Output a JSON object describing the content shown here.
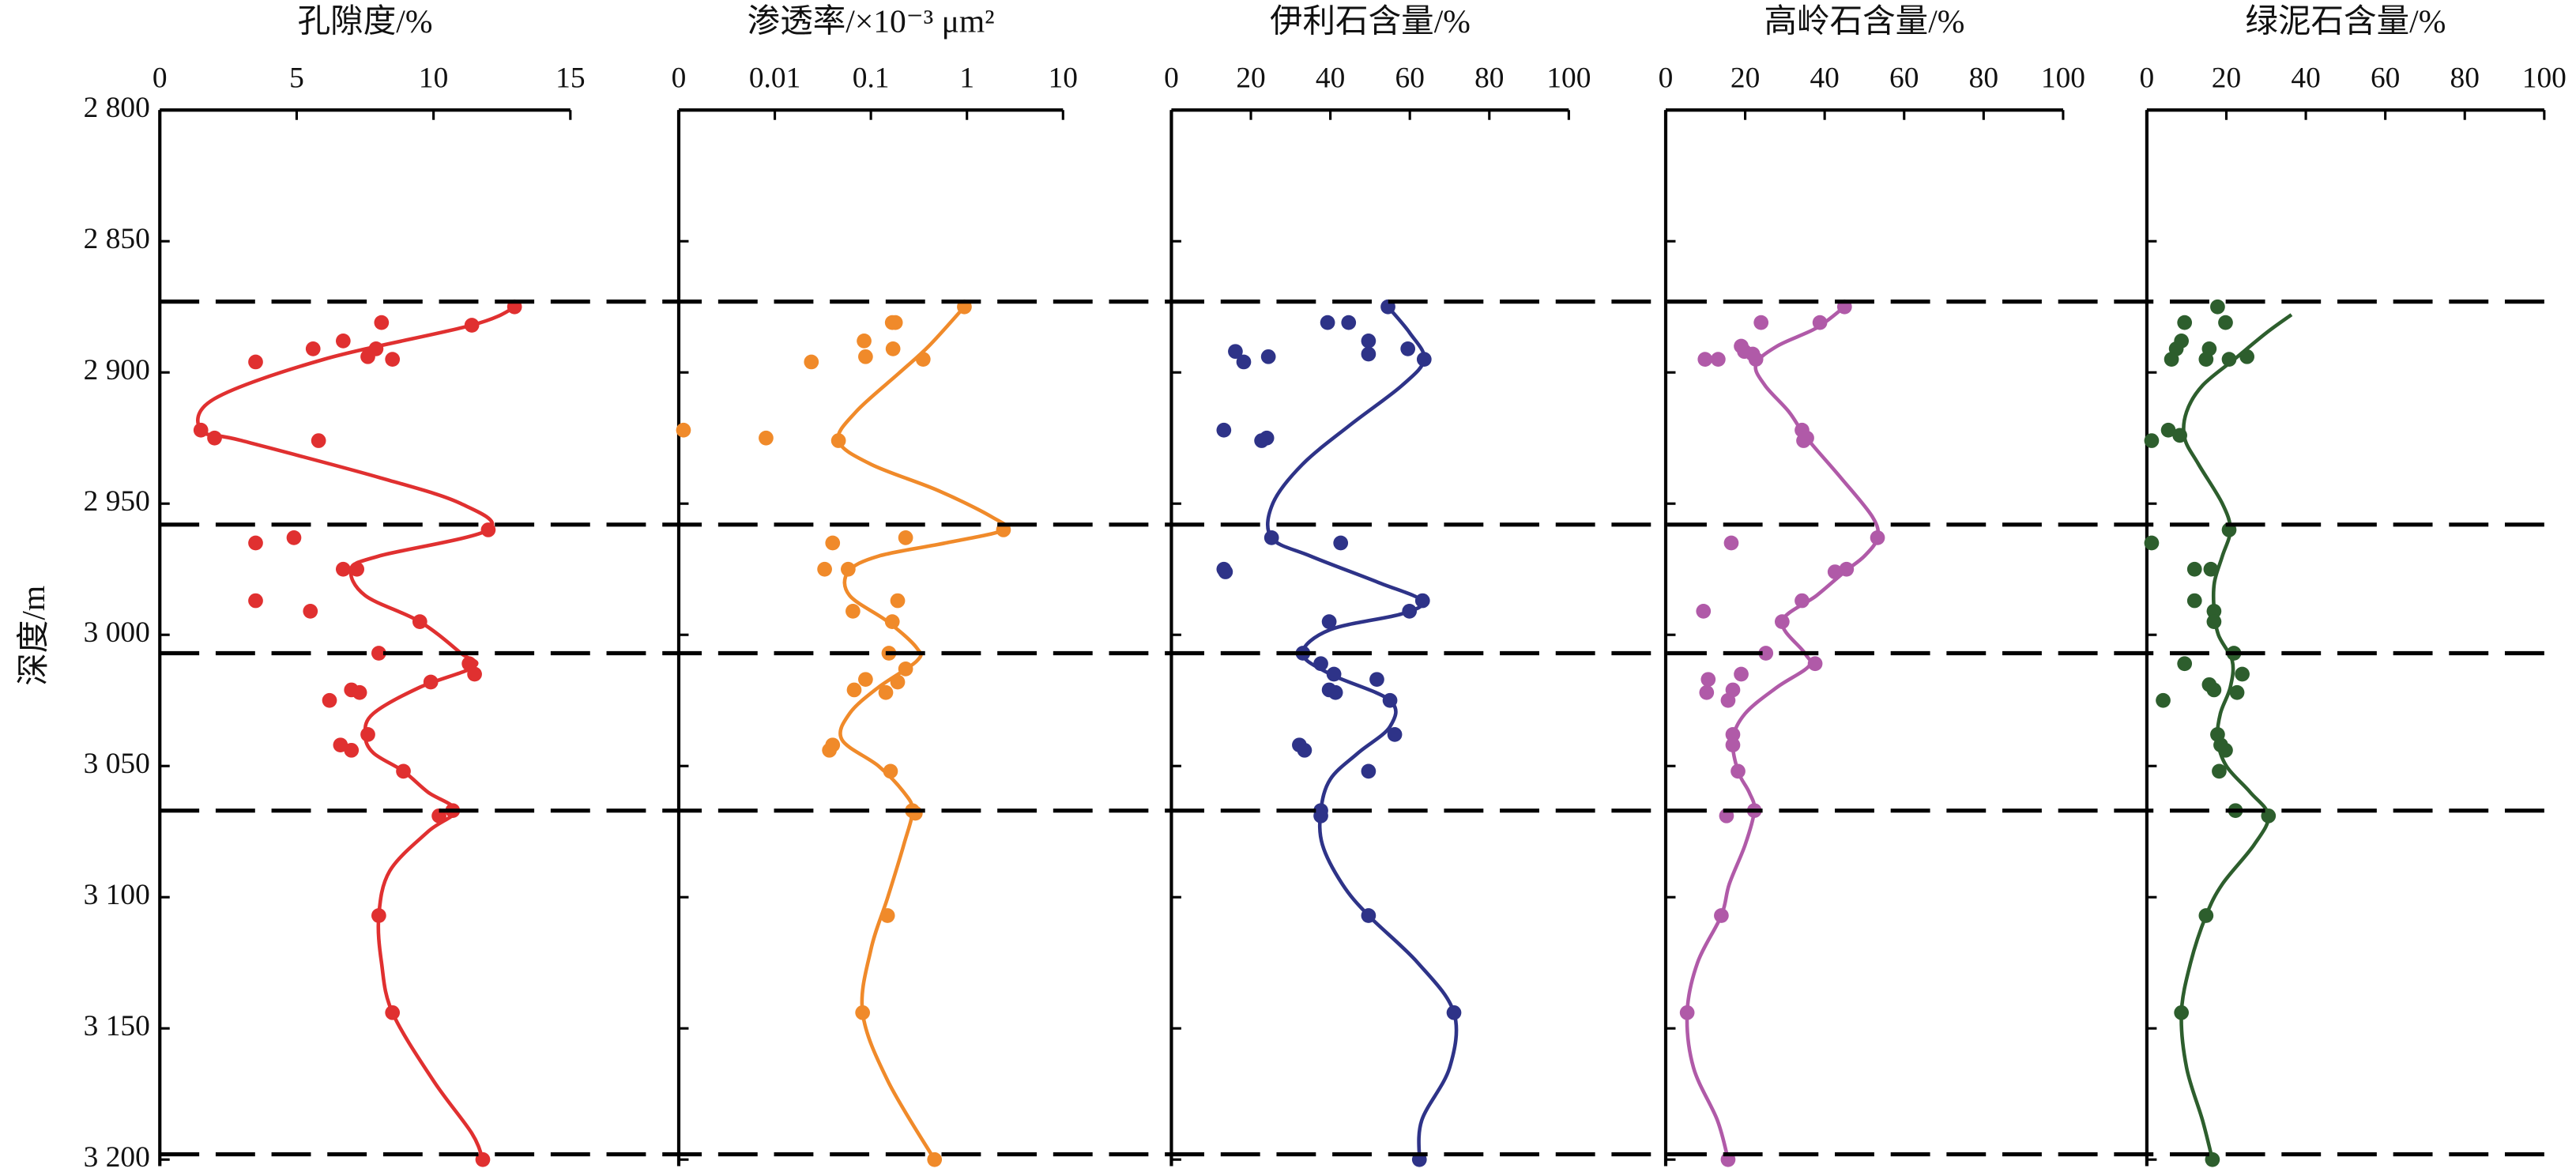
{
  "boundaries": [
    2873,
    2958,
    3007,
    3067,
    3198
  ],
  "chart_data": [
    {
      "type": "scatter",
      "title": "孔隙度/%",
      "ylabel": "深度/m",
      "color": "#e03030",
      "xlim": [
        0,
        15
      ],
      "xticks": [
        0,
        5,
        10,
        15
      ],
      "ylim": [
        2800,
        3200
      ],
      "yticks": [
        {
          "value": 2800,
          "label": "2 800"
        },
        {
          "value": 2850,
          "label": "2 850"
        },
        {
          "value": 2900,
          "label": "2 900"
        },
        {
          "value": 2950,
          "label": "2 950"
        },
        {
          "value": 3000,
          "label": "3 000"
        },
        {
          "value": 3050,
          "label": "3 050"
        },
        {
          "value": 3100,
          "label": "3 100"
        },
        {
          "value": 3150,
          "label": "3 150"
        },
        {
          "value": 3200,
          "label": "3 200"
        }
      ],
      "points": {
        "depth": [
          2875,
          2882,
          2881,
          2891,
          2888,
          2891,
          2894,
          2895,
          2896,
          2922,
          2925,
          2926,
          2960,
          2965,
          2963,
          2975,
          2975,
          2987,
          2991,
          2995,
          3007,
          3011,
          3015,
          3018,
          3021,
          3022,
          3025,
          3038,
          3042,
          3044,
          3052,
          3067,
          3069,
          3107,
          3144,
          3200
        ],
        "values": [
          12.96,
          11.4,
          8.1,
          5.6,
          6.7,
          7.9,
          7.6,
          8.5,
          3.5,
          1.5,
          2.0,
          5.8,
          12.0,
          3.5,
          4.9,
          6.7,
          7.2,
          3.5,
          5.5,
          9.5,
          8.0,
          11.3,
          11.5,
          9.9,
          7.0,
          7.3,
          6.2,
          7.6,
          6.6,
          7.0,
          8.9,
          10.7,
          10.2,
          8.0,
          8.5,
          11.8
        ]
      },
      "curve": {
        "depth": [
          2875,
          2882,
          2895,
          2910,
          2922,
          2926,
          2940,
          2950,
          2960,
          2970,
          2975,
          2985,
          2995,
          3007,
          3012,
          3020,
          3030,
          3038,
          3045,
          3052,
          3060,
          3067,
          3075,
          3090,
          3107,
          3125,
          3144,
          3170,
          3190,
          3200
        ],
        "values": [
          13,
          11.4,
          6,
          2,
          1.5,
          3,
          8,
          11,
          12,
          8,
          7,
          7.5,
          9.5,
          11,
          11.5,
          9.5,
          7.8,
          7.5,
          7.8,
          8.9,
          9.8,
          10.8,
          9.8,
          8.4,
          8,
          8.1,
          8.5,
          10,
          11.4,
          11.8
        ]
      }
    },
    {
      "type": "scatter",
      "title": "渗透率/×10⁻³ μm²",
      "color": "#f08a2a",
      "x_scale": "log",
      "xlim": [
        0.001,
        10
      ],
      "xticks": [
        {
          "value": 0.001,
          "label": "0"
        },
        0.01,
        0.1,
        1,
        10
      ],
      "ylim": [
        2800,
        3200
      ],
      "yticks": [
        2800,
        2850,
        2900,
        2950,
        3000,
        3050,
        3100,
        3150,
        3200
      ],
      "points": {
        "depth": [
          2875,
          2881,
          2881,
          2888,
          2891,
          2894,
          2896,
          2895,
          2922,
          2925,
          2926,
          2960,
          2963,
          2965,
          2975,
          2975,
          2987,
          2991,
          2995,
          3007,
          3013,
          3018,
          3017,
          3021,
          3022,
          3042,
          3044,
          3052,
          3067,
          3068,
          3107,
          3144,
          3200
        ],
        "values": [
          0.94,
          0.167,
          0.18,
          0.085,
          0.17,
          0.088,
          0.024,
          0.35,
          0.00112,
          0.0081,
          0.046,
          2.4,
          0.23,
          0.04,
          0.058,
          0.033,
          0.19,
          0.065,
          0.167,
          0.154,
          0.23,
          0.19,
          0.088,
          0.067,
          0.143,
          0.04,
          0.037,
          0.16,
          0.27,
          0.29,
          0.149,
          0.082,
          0.46
        ]
      },
      "curve": {
        "depth": [
          2875,
          2890,
          2900,
          2915,
          2926,
          2935,
          2945,
          2955,
          2960,
          2965,
          2970,
          2976,
          2985,
          2995,
          3005,
          3010,
          3020,
          3030,
          3040,
          3050,
          3060,
          3067,
          3080,
          3100,
          3120,
          3144,
          3170,
          3200
        ],
        "values": [
          0.94,
          0.4,
          0.2,
          0.07,
          0.046,
          0.1,
          0.5,
          1.8,
          2.4,
          0.6,
          0.12,
          0.058,
          0.06,
          0.15,
          0.3,
          0.3,
          0.12,
          0.06,
          0.05,
          0.12,
          0.22,
          0.27,
          0.22,
          0.15,
          0.1,
          0.082,
          0.15,
          0.46
        ]
      }
    },
    {
      "type": "scatter",
      "title": "伊利石含量/%",
      "color": "#2e3388",
      "xlim": [
        0,
        100
      ],
      "xticks": [
        0,
        20,
        40,
        60,
        80,
        100
      ],
      "ylim": [
        2800,
        3200
      ],
      "yticks": [
        2800,
        2850,
        2900,
        2950,
        3000,
        3050,
        3100,
        3150,
        3200
      ],
      "points": {
        "depth": [
          2875,
          2881,
          2881,
          2888,
          2893,
          2891,
          2895,
          2892,
          2896,
          2894,
          2922,
          2925,
          2926,
          2963,
          2965,
          2975,
          2976,
          2987,
          2991,
          2995,
          3007,
          3011,
          3015,
          3017,
          3021,
          3022,
          3025,
          3038,
          3042,
          3044,
          3052,
          3067,
          3069,
          3107,
          3144,
          3200
        ],
        "values": [
          54.5,
          44.6,
          39.3,
          49.6,
          49.6,
          59.5,
          63.6,
          16.1,
          18.2,
          24.4,
          13.2,
          24.0,
          22.7,
          25.2,
          42.6,
          13.2,
          13.6,
          63.2,
          59.9,
          39.7,
          33.1,
          37.6,
          40.9,
          51.7,
          39.7,
          41.3,
          55,
          56.2,
          32.2,
          33.5,
          49.6,
          37.6,
          37.6,
          49.6,
          71.1,
          62.4
        ]
      },
      "curve": {
        "depth": [
          2875,
          2885,
          2895,
          2905,
          2920,
          2935,
          2950,
          2963,
          2970,
          2980,
          2987,
          2992,
          2998,
          3007,
          3015,
          3025,
          3035,
          3045,
          3055,
          3067,
          3080,
          3095,
          3107,
          3125,
          3144,
          3165,
          3185,
          3200
        ],
        "values": [
          54.5,
          60,
          63.6,
          58,
          45,
          33,
          25.5,
          25.2,
          35,
          52,
          63,
          58,
          40,
          33,
          40,
          55,
          55,
          47,
          40,
          37.6,
          38,
          43,
          49.6,
          62,
          71.1,
          70,
          63,
          62.4
        ]
      }
    },
    {
      "type": "scatter",
      "title": "高岭石含量/%",
      "color": "#b05aa8",
      "xlim": [
        0,
        100
      ],
      "xticks": [
        0,
        20,
        40,
        60,
        80,
        100
      ],
      "ylim": [
        2800,
        3200
      ],
      "yticks": [
        2800,
        2850,
        2900,
        2950,
        3000,
        3050,
        3100,
        3150,
        3200
      ],
      "points": {
        "depth": [
          2875,
          2881,
          2881,
          2890,
          2893,
          2892,
          2895,
          2895,
          2895,
          2922,
          2925,
          2926,
          2963,
          2965,
          2975,
          2976,
          2987,
          2991,
          2995,
          3007,
          3011,
          3015,
          3017,
          3021,
          3022,
          3025,
          3038,
          3042,
          3052,
          3067,
          3069,
          3107,
          3144,
          3200
        ],
        "values": [
          45.0,
          38.8,
          24.0,
          19.0,
          21.9,
          19.8,
          9.9,
          13.2,
          22.7,
          34.3,
          35.5,
          34.7,
          53.3,
          16.5,
          45.5,
          42.6,
          34.3,
          9.5,
          29.3,
          25.2,
          37.6,
          19.0,
          10.7,
          16.9,
          10.3,
          15.7,
          16.9,
          16.9,
          18.2,
          22.3,
          15.3,
          14.0,
          5.4,
          15.7
        ]
      },
      "curve": {
        "depth": [
          2875,
          2883,
          2890,
          2897,
          2905,
          2915,
          2925,
          2940,
          2955,
          2963,
          2970,
          2976,
          2985,
          2995,
          3007,
          3012,
          3020,
          3030,
          3040,
          3052,
          3060,
          3067,
          3080,
          3095,
          3107,
          3125,
          3144,
          3165,
          3185,
          3200
        ],
        "values": [
          45,
          38,
          28,
          22.7,
          25,
          31,
          35.5,
          44,
          52,
          53.3,
          50,
          45,
          38,
          29.3,
          35,
          36,
          28,
          20,
          16.9,
          18.2,
          21,
          22.3,
          20,
          16,
          14,
          8,
          5.4,
          7,
          13,
          15.7
        ]
      }
    },
    {
      "type": "scatter",
      "title": "绿泥石含量/%",
      "color": "#2d5e2d",
      "xlim": [
        0,
        100
      ],
      "xticks": [
        0,
        20,
        40,
        60,
        80,
        100
      ],
      "ylim": [
        2800,
        3200
      ],
      "yticks": [
        2800,
        2850,
        2900,
        2950,
        3000,
        3050,
        3100,
        3150,
        3200
      ],
      "points": {
        "depth": [
          2875,
          2881,
          2881,
          2888,
          2891,
          2891,
          2894,
          2895,
          2895,
          2895,
          2922,
          2926,
          2924,
          2960,
          2965,
          2975,
          2975,
          2987,
          2991,
          2995,
          3007,
          3015,
          3011,
          3019,
          3021,
          3022,
          3025,
          3038,
          3042,
          3044,
          3052,
          3067,
          3069,
          3107,
          3144,
          3200
        ],
        "values": [
          17.8,
          9.5,
          19.8,
          8.7,
          7.4,
          15.7,
          25.2,
          6.2,
          14.9,
          20.7,
          5.4,
          1.2,
          8.3,
          20.7,
          1.2,
          12.0,
          16.1,
          12.0,
          16.9,
          16.9,
          21.9,
          24.0,
          9.5,
          15.7,
          16.9,
          22.7,
          4.1,
          17.8,
          18.6,
          19.8,
          18.2,
          22.3,
          30.6,
          14.9,
          8.7,
          16.5
        ]
      },
      "curve": {
        "depth": [
          2878,
          2885,
          2895,
          2905,
          2915,
          2925,
          2935,
          2950,
          2960,
          2970,
          2980,
          2990,
          3000,
          3010,
          3020,
          3030,
          3040,
          3050,
          3060,
          3069,
          3080,
          3095,
          3107,
          3125,
          3144,
          3165,
          3185,
          3200
        ],
        "values": [
          36.4,
          30,
          22,
          14,
          10,
          9.5,
          13,
          19,
          21,
          19,
          17,
          16.9,
          18,
          21.5,
          21,
          18.5,
          17.8,
          20,
          26,
          30.6,
          27,
          19,
          14.9,
          11,
          8.7,
          10,
          14,
          16.5
        ]
      }
    }
  ]
}
